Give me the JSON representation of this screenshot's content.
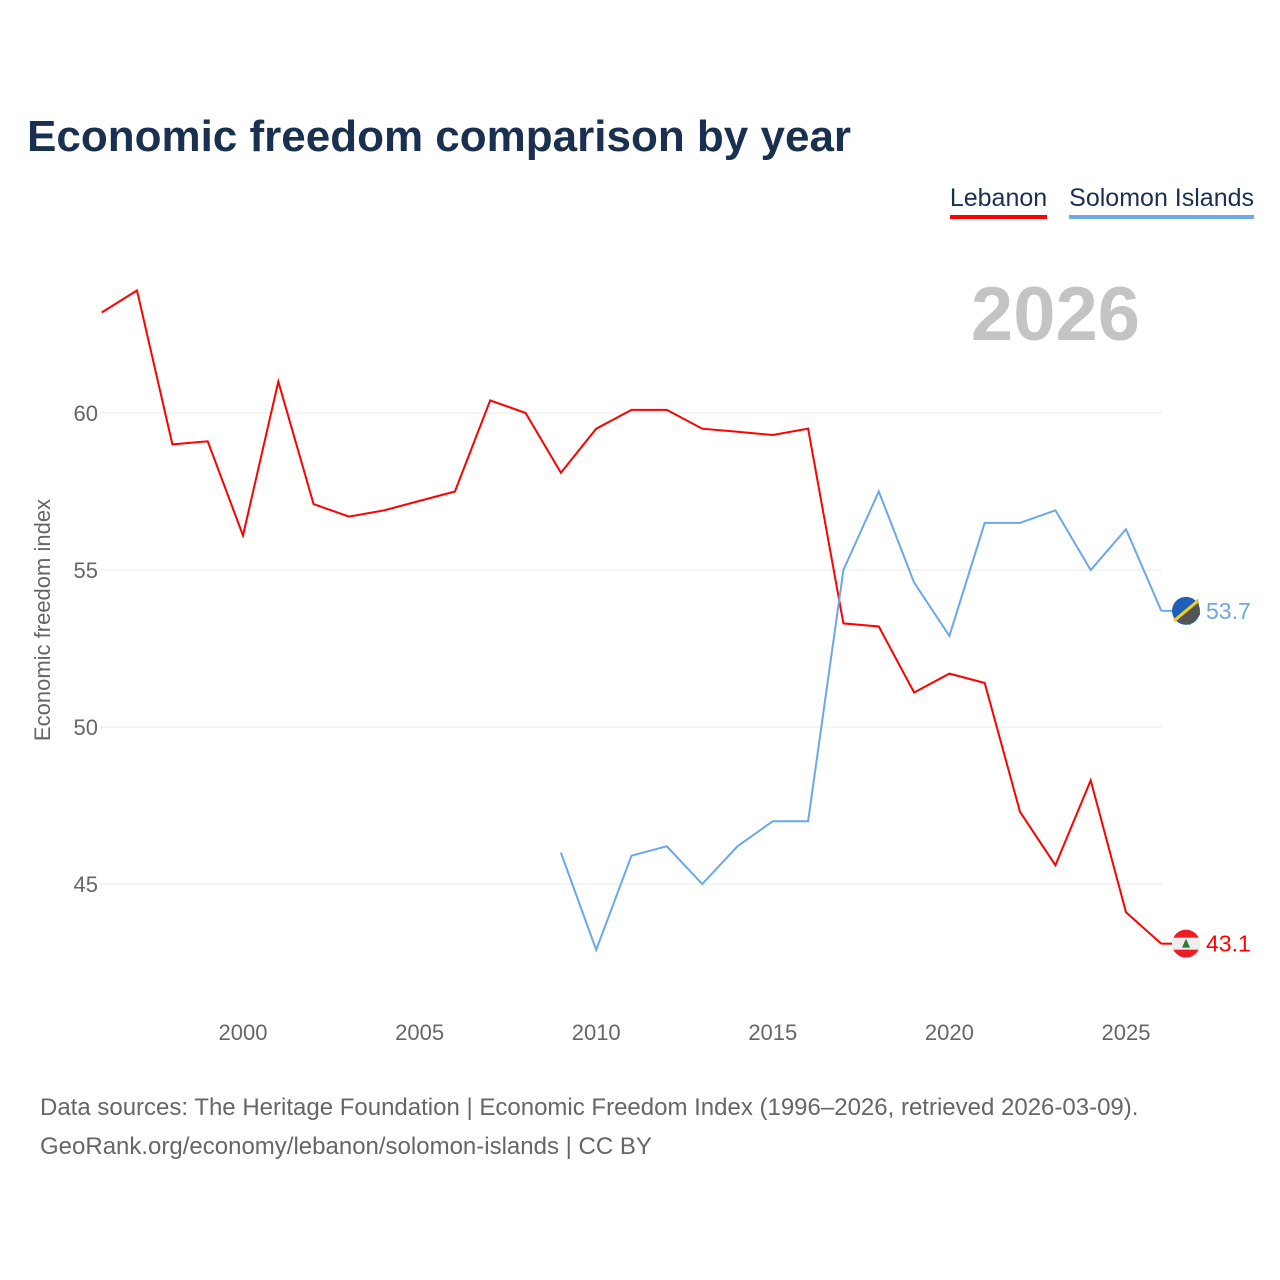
{
  "title": "Economic freedom comparison by year",
  "footer": {
    "line1": "Data sources: The Heritage Foundation | Economic Freedom Index (1996–2026, retrieved 2026-03-09).",
    "line2": "GeoRank.org/economy/lebanon/solomon-islands | CC BY"
  },
  "chart_data": {
    "type": "line",
    "title": "Economic freedom comparison by year",
    "ylabel": "Economic freedom index",
    "xlabel": "",
    "year_label": "2026",
    "xlim": [
      1996,
      2026
    ],
    "ylim": [
      41.5,
      65
    ],
    "xticks": [
      2000,
      2005,
      2010,
      2015,
      2020,
      2025
    ],
    "yticks": [
      45,
      50,
      55,
      60
    ],
    "grid": true,
    "legend_position": "top-right",
    "series": [
      {
        "name": "Lebanon",
        "color": "#ff0000",
        "end_label": "43.1",
        "x": [
          1996,
          1997,
          1998,
          1999,
          2000,
          2001,
          2002,
          2003,
          2004,
          2005,
          2006,
          2007,
          2008,
          2009,
          2010,
          2011,
          2012,
          2013,
          2014,
          2015,
          2016,
          2017,
          2018,
          2019,
          2020,
          2021,
          2022,
          2023,
          2024,
          2025,
          2026
        ],
        "values": [
          63.2,
          63.9,
          59.0,
          59.1,
          56.1,
          61.0,
          57.1,
          56.7,
          56.9,
          57.2,
          57.5,
          60.4,
          60.0,
          58.1,
          59.5,
          60.1,
          60.1,
          59.5,
          59.4,
          59.3,
          59.5,
          53.3,
          53.2,
          51.1,
          51.7,
          51.4,
          47.3,
          45.6,
          48.3,
          44.1,
          43.1
        ]
      },
      {
        "name": "Solomon Islands",
        "color": "#6aa8e8",
        "end_label": "53.7",
        "x": [
          2009,
          2010,
          2011,
          2012,
          2013,
          2014,
          2015,
          2016,
          2017,
          2018,
          2019,
          2020,
          2021,
          2022,
          2023,
          2024,
          2025,
          2026
        ],
        "values": [
          46.0,
          42.9,
          45.9,
          46.2,
          45.0,
          46.2,
          47.0,
          47.0,
          55.0,
          57.5,
          54.6,
          52.9,
          56.5,
          56.5,
          56.9,
          55.0,
          56.3,
          53.7
        ]
      }
    ]
  }
}
